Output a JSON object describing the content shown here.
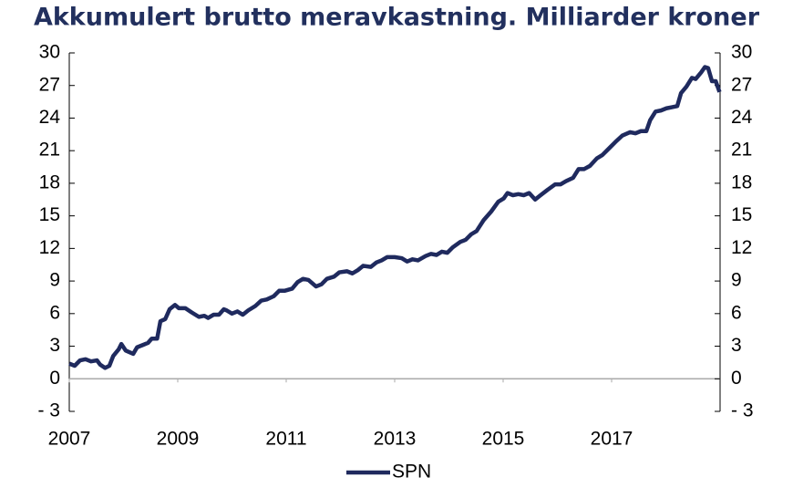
{
  "chart_data": {
    "type": "line",
    "title": "Akkumulert brutto meravkastning. Milliarder kroner",
    "x": [
      2007.0,
      2007.1,
      2007.2,
      2007.3,
      2007.4,
      2007.51,
      2007.57,
      2007.66,
      2007.74,
      2007.81,
      2007.91,
      2007.96,
      2008.04,
      2008.18,
      2008.25,
      2008.35,
      2008.45,
      2008.52,
      2008.62,
      2008.68,
      2008.77,
      2008.85,
      2008.95,
      2009.02,
      2009.14,
      2009.26,
      2009.39,
      2009.49,
      2009.56,
      2009.66,
      2009.76,
      2009.85,
      2009.9,
      2010.0,
      2010.1,
      2010.2,
      2010.3,
      2010.43,
      2010.54,
      2010.64,
      2010.77,
      2010.87,
      2010.97,
      2011.11,
      2011.21,
      2011.31,
      2011.41,
      2011.55,
      2011.65,
      2011.75,
      2011.88,
      2011.98,
      2012.12,
      2012.22,
      2012.32,
      2012.42,
      2012.56,
      2012.66,
      2012.76,
      2012.86,
      2013.0,
      2013.13,
      2013.23,
      2013.33,
      2013.43,
      2013.57,
      2013.67,
      2013.77,
      2013.87,
      2013.97,
      2014.07,
      2014.21,
      2014.31,
      2014.41,
      2014.51,
      2014.64,
      2014.78,
      2014.91,
      2015.01,
      2015.08,
      2015.18,
      2015.28,
      2015.38,
      2015.48,
      2015.59,
      2015.69,
      2015.82,
      2015.96,
      2016.06,
      2016.16,
      2016.29,
      2016.39,
      2016.49,
      2016.6,
      2016.73,
      2016.83,
      2016.97,
      2017.07,
      2017.2,
      2017.34,
      2017.44,
      2017.54,
      2017.64,
      2017.71,
      2017.81,
      2017.91,
      2018.01,
      2018.11,
      2018.21,
      2018.28,
      2018.38,
      2018.48,
      2018.55,
      2018.65,
      2018.72,
      2018.78,
      2018.85,
      2018.92,
      2018.99
    ],
    "series": [
      {
        "name": "SPN",
        "color": "#1f2a5e",
        "values": [
          1.4,
          1.2,
          1.7,
          1.8,
          1.6,
          1.7,
          1.3,
          1.0,
          1.2,
          2.1,
          2.7,
          3.2,
          2.6,
          2.3,
          2.9,
          3.1,
          3.3,
          3.7,
          3.7,
          5.3,
          5.5,
          6.4,
          6.8,
          6.5,
          6.5,
          6.1,
          5.7,
          5.8,
          5.6,
          5.9,
          5.9,
          6.4,
          6.3,
          6.0,
          6.2,
          5.9,
          6.3,
          6.7,
          7.2,
          7.3,
          7.6,
          8.1,
          8.1,
          8.3,
          8.9,
          9.2,
          9.1,
          8.5,
          8.7,
          9.2,
          9.4,
          9.8,
          9.9,
          9.7,
          10.0,
          10.4,
          10.3,
          10.7,
          10.9,
          11.2,
          11.2,
          11.1,
          10.8,
          11.0,
          10.9,
          11.3,
          11.5,
          11.4,
          11.7,
          11.6,
          12.1,
          12.6,
          12.8,
          13.3,
          13.6,
          14.6,
          15.4,
          16.3,
          16.6,
          17.1,
          16.9,
          17.0,
          16.9,
          17.1,
          16.5,
          16.9,
          17.4,
          17.9,
          17.9,
          18.2,
          18.5,
          19.3,
          19.3,
          19.6,
          20.3,
          20.6,
          21.3,
          21.8,
          22.4,
          22.7,
          22.6,
          22.8,
          22.8,
          23.8,
          24.6,
          24.7,
          24.9,
          25.0,
          25.1,
          26.3,
          26.9,
          27.7,
          27.6,
          28.2,
          28.7,
          28.6,
          27.4,
          27.4,
          26.4
        ]
      }
    ],
    "xlim": [
      2007,
      2019
    ],
    "xticks": [
      2007,
      2009,
      2011,
      2013,
      2015,
      2017
    ],
    "ylim": [
      -3,
      30
    ],
    "yticks": [
      {
        "value": -3,
        "label": "- 3"
      },
      0,
      3,
      6,
      9,
      12,
      15,
      18,
      21,
      24,
      27,
      30
    ],
    "y2lim": [
      -3,
      30
    ],
    "y2ticks": [
      {
        "value": -3,
        "label": "- 3"
      },
      0,
      3,
      6,
      9,
      12,
      15,
      18,
      21,
      24,
      27,
      30
    ],
    "legend": "bottom"
  }
}
